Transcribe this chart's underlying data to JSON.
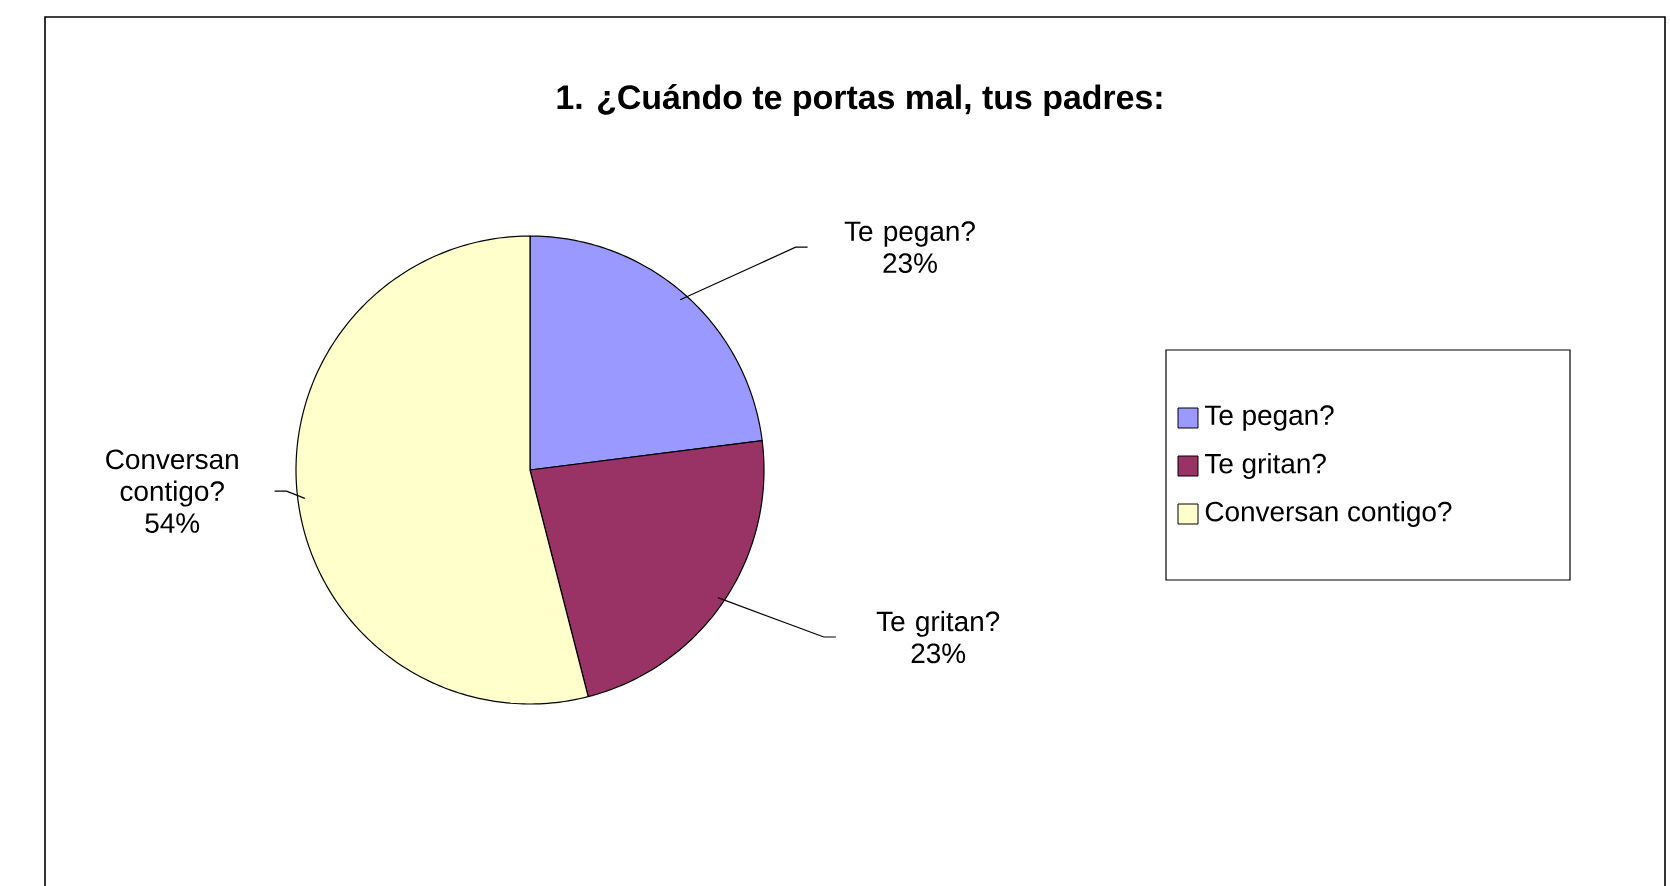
{
  "chart_data": {
    "type": "pie",
    "title": "1. ¿Cuándo te portas mal, tus padres:",
    "categories": [
      "Te pegan?",
      "Te gritan?",
      "Conversan contigo?"
    ],
    "values": [
      23,
      23,
      54
    ],
    "value_labels": [
      "23%",
      "23%",
      "54%"
    ],
    "colors": [
      "#9999ff",
      "#993366",
      "#ffffcc"
    ],
    "legend": "right"
  }
}
